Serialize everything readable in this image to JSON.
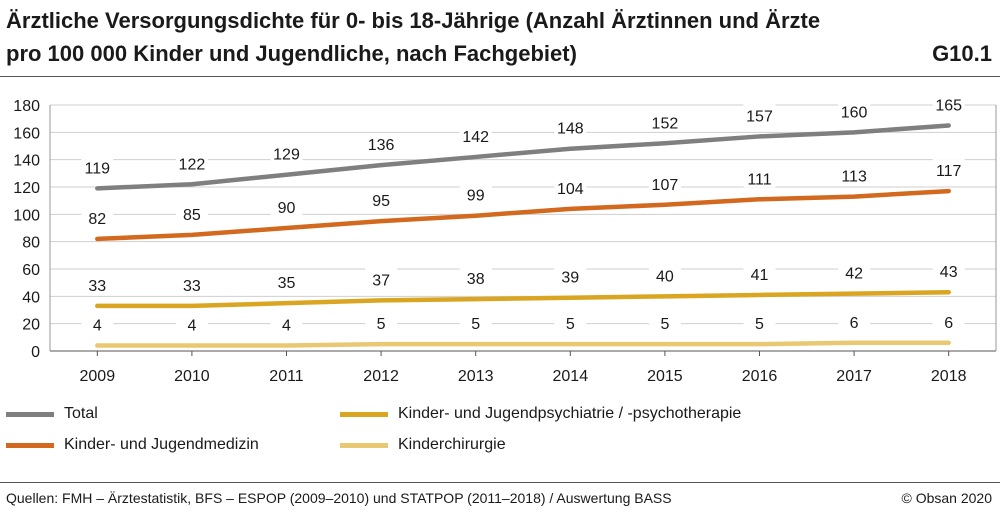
{
  "header": {
    "title": "Ärztliche Versorgungsdichte für 0- bis 18-Jährige (Anzahl Ärztinnen und Ärzte pro 100 000 Kinder und Jugendliche, nach Fachgebiet)",
    "figure_id": "G10.1"
  },
  "footer": {
    "sources": "Quellen: FMH – Ärztestatistik, BFS – ESPOP (2009–2010) und STATPOP (2011–2018) / Auswertung BASS",
    "copyright": "© Obsan 2020"
  },
  "chart_data": {
    "type": "line",
    "title": "Ärztliche Versorgungsdichte für 0- bis 18-Jährige (Anzahl Ärztinnen und Ärzte pro 100 000 Kinder und Jugendliche, nach Fachgebiet)",
    "xlabel": "",
    "ylabel": "",
    "ylim": [
      0,
      180
    ],
    "yticks": [
      0,
      20,
      40,
      60,
      80,
      100,
      120,
      140,
      160,
      180
    ],
    "grid": true,
    "legend_position": "bottom",
    "categories": [
      "2009",
      "2010",
      "2011",
      "2012",
      "2013",
      "2014",
      "2015",
      "2016",
      "2017",
      "2018"
    ],
    "series": [
      {
        "name": "Total",
        "color": "#7f7f7f",
        "values": [
          119,
          122,
          129,
          136,
          142,
          148,
          152,
          157,
          160,
          165
        ]
      },
      {
        "name": "Kinder- und Jugendmedizin",
        "color": "#d2691e",
        "values": [
          82,
          85,
          90,
          95,
          99,
          104,
          107,
          111,
          113,
          117
        ]
      },
      {
        "name": "Kinder- und Jugendpsychiatrie / -psychotherapie",
        "color": "#daa520",
        "values": [
          33,
          33,
          35,
          37,
          38,
          39,
          40,
          41,
          42,
          43
        ]
      },
      {
        "name": "Kinderchirurgie",
        "color": "#e8c870",
        "values": [
          4,
          4,
          4,
          5,
          5,
          5,
          5,
          5,
          6,
          6
        ]
      }
    ]
  }
}
